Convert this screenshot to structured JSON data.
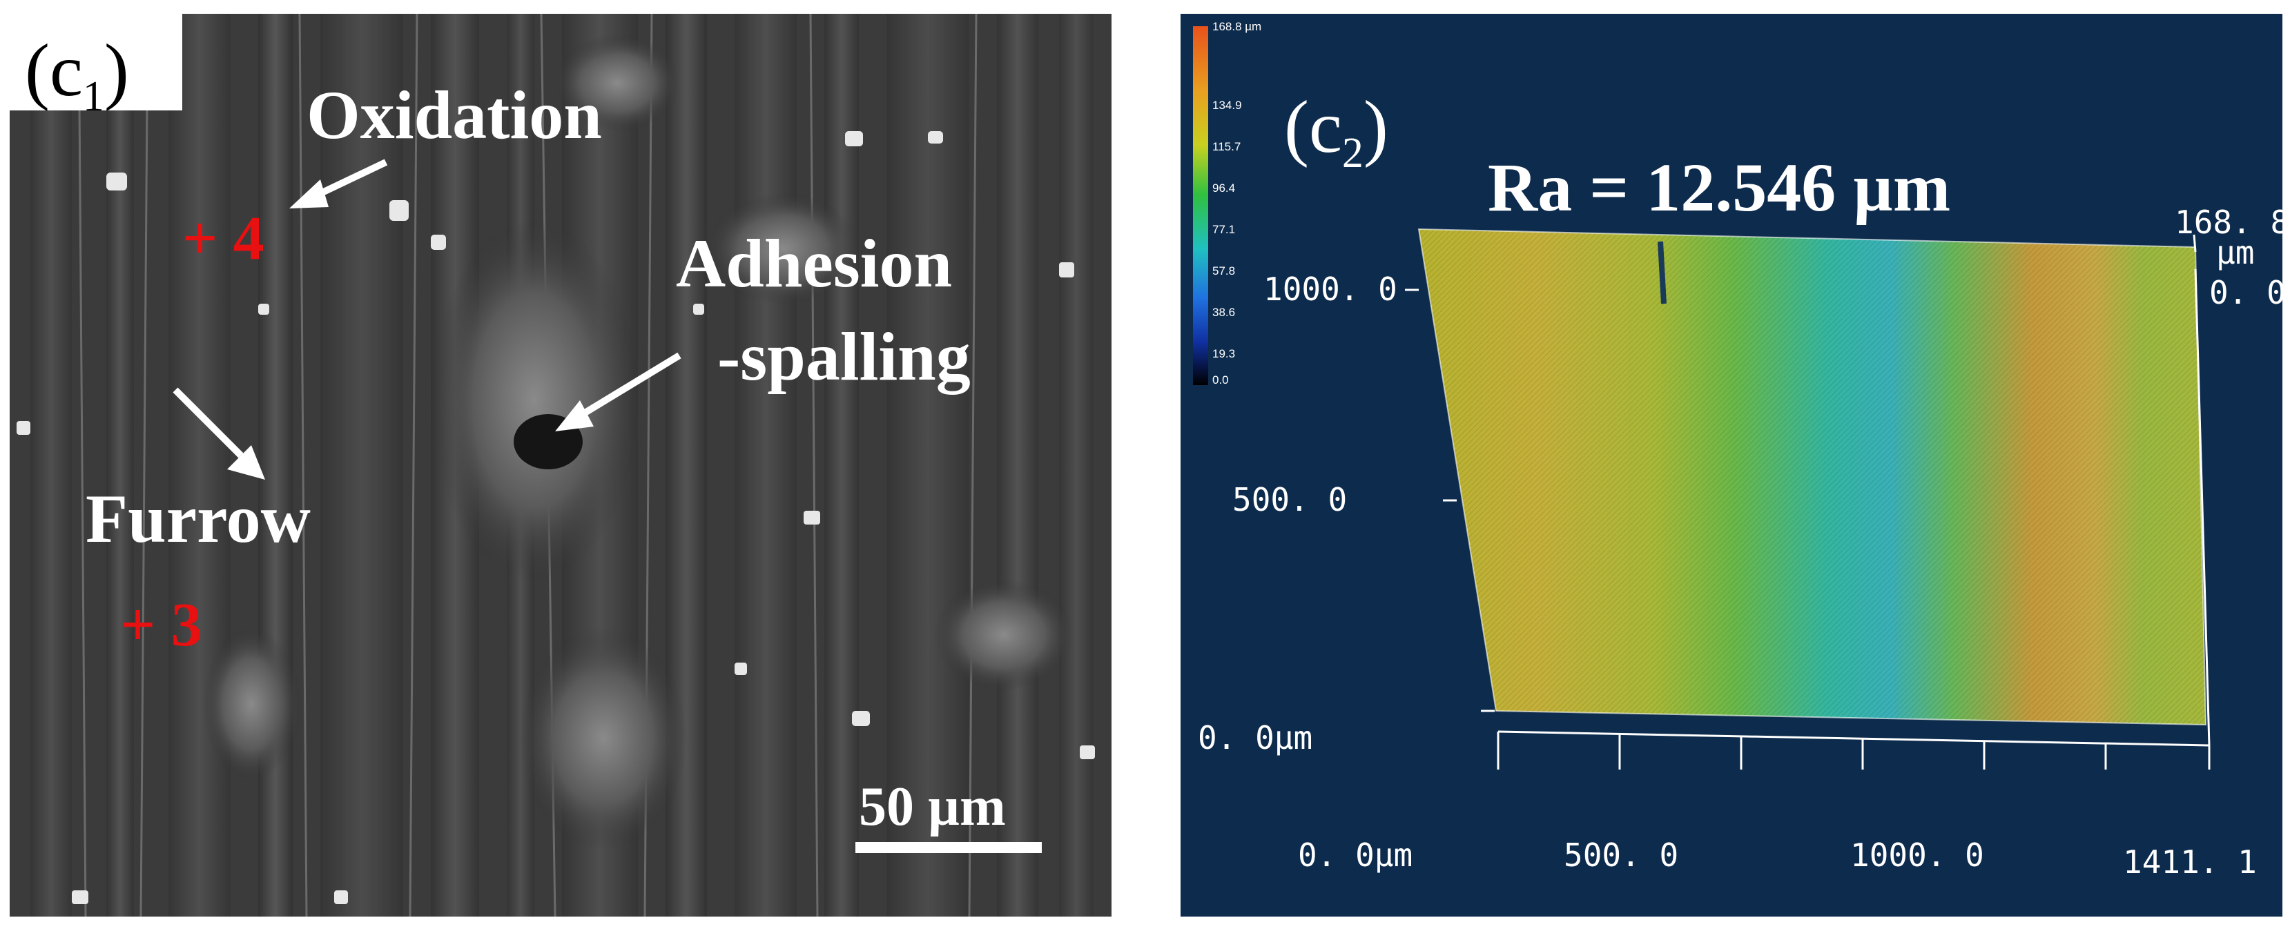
{
  "left_panel": {
    "label_letter": "(c",
    "label_sub": "1",
    "label_close": ")",
    "oxidation": "Oxidation",
    "adhesion_line1": "Adhesion",
    "adhesion_line2": "-spalling",
    "furrow": "Furrow",
    "point_4": "+ 4",
    "point_3": "+ 3",
    "scale_bar": "50 µm"
  },
  "right_panel": {
    "label_letter": "(c",
    "label_sub": "2",
    "label_close": ")",
    "roughness": "Ra = 12.546 µm",
    "colorbar_ticks": [
      "168.8 µm",
      "134.9",
      "115.7",
      "96.4",
      "77.1",
      "57.8",
      "38.6",
      "19.3",
      "0.0"
    ],
    "y_axis": [
      "1000. 0",
      "500. 0",
      "0. 0µm"
    ],
    "x_axis": [
      "0. 0µm",
      "500. 0",
      "1000. 0",
      "1411. 1"
    ],
    "z_axis_top": "168. 8",
    "z_axis_unit": "µm",
    "z_axis_bottom": "0. 0"
  },
  "colors": {
    "sem_background": "#3a3a3a",
    "profile_background": "#0d2b4c",
    "annotation_red": "#e81010",
    "annotation_white": "#ffffff"
  }
}
